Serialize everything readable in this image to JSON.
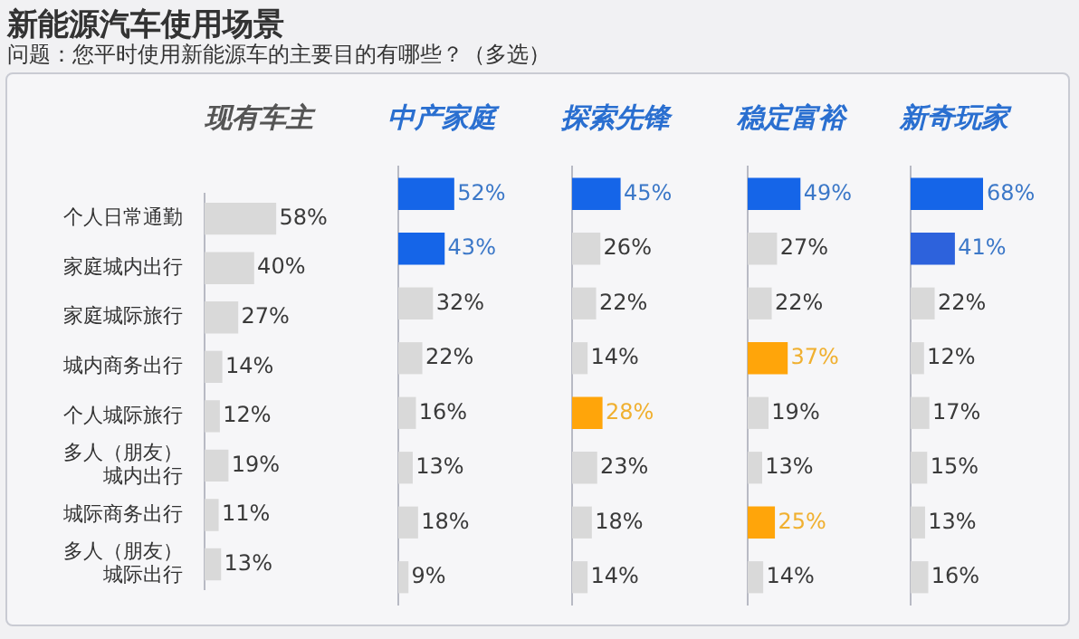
{
  "chart_data": [
    {
      "type": "bar",
      "orientation": "horizontal",
      "title": "现有车主",
      "annotations": [
        "新能源汽车使用场景",
        "问题：您平时使用新能源车的主要目的有哪些？（多选）"
      ],
      "categories": [
        "个人日常通勤",
        "家庭城内出行",
        "家庭城际旅行",
        "城内商务出行",
        "个人城际旅行",
        "多人（朋友）城内出行",
        "城际商务出行",
        "多人（朋友）城际出行"
      ],
      "values": [
        58,
        40,
        27,
        14,
        12,
        19,
        11,
        13
      ],
      "value_labels": [
        "58%",
        "40%",
        "27%",
        "14%",
        "12%",
        "19%",
        "11%",
        "13%"
      ],
      "colors": [
        "#d9d9d9",
        "#d9d9d9",
        "#d9d9d9",
        "#d9d9d9",
        "#d9d9d9",
        "#d9d9d9",
        "#d9d9d9",
        "#d9d9d9"
      ],
      "tick_labels": "y",
      "grid": false,
      "legend": false
    },
    {
      "type": "bar",
      "orientation": "horizontal",
      "title": "中产家庭",
      "categories": [
        "个人日常通勤",
        "家庭城内出行",
        "家庭城际旅行",
        "城内商务出行",
        "个人城际旅行",
        "多人（朋友）城内出行",
        "城际商务出行",
        "多人（朋友）城际出行"
      ],
      "values": [
        52,
        43,
        32,
        22,
        16,
        13,
        18,
        9
      ],
      "value_labels": [
        "52%",
        "43%",
        "32%",
        "22%",
        "16%",
        "13%",
        "18%",
        "9%"
      ],
      "colors": [
        "#1565e8",
        "#1565e8",
        "#d9d9d9",
        "#d9d9d9",
        "#d9d9d9",
        "#d9d9d9",
        "#d9d9d9",
        "#d9d9d9"
      ],
      "tick_labels": false,
      "grid": false,
      "legend": false
    },
    {
      "type": "bar",
      "orientation": "horizontal",
      "title": "探索先锋",
      "categories": [
        "个人日常通勤",
        "家庭城内出行",
        "家庭城际旅行",
        "城内商务出行",
        "个人城际旅行",
        "多人（朋友）城内出行",
        "城际商务出行",
        "多人（朋友）城际出行"
      ],
      "values": [
        45,
        26,
        22,
        14,
        28,
        23,
        18,
        14
      ],
      "value_labels": [
        "45%",
        "26%",
        "22%",
        "14%",
        "28%",
        "23%",
        "18%",
        "14%"
      ],
      "colors": [
        "#1565e8",
        "#d9d9d9",
        "#d9d9d9",
        "#d9d9d9",
        "#ffa50a",
        "#d9d9d9",
        "#d9d9d9",
        "#d9d9d9"
      ],
      "tick_labels": false,
      "grid": false,
      "legend": false
    },
    {
      "type": "bar",
      "orientation": "horizontal",
      "title": "稳定富裕",
      "categories": [
        "个人日常通勤",
        "家庭城内出行",
        "家庭城际旅行",
        "城内商务出行",
        "个人城际旅行",
        "多人（朋友）城内出行",
        "城际商务出行",
        "多人（朋友）城际出行"
      ],
      "values": [
        49,
        27,
        22,
        37,
        19,
        13,
        25,
        14
      ],
      "value_labels": [
        "49%",
        "27%",
        "22%",
        "37%",
        "19%",
        "13%",
        "25%",
        "14%"
      ],
      "colors": [
        "#1565e8",
        "#d9d9d9",
        "#d9d9d9",
        "#ffa50a",
        "#d9d9d9",
        "#d9d9d9",
        "#ffa50a",
        "#d9d9d9"
      ],
      "tick_labels": false,
      "grid": false,
      "legend": false
    },
    {
      "type": "bar",
      "orientation": "horizontal",
      "title": "新奇玩家",
      "categories": [
        "个人日常通勤",
        "家庭城内出行",
        "家庭城际旅行",
        "城内商务出行",
        "个人城际旅行",
        "多人（朋友）城内出行",
        "城际商务出行",
        "多人（朋友）城际出行"
      ],
      "values": [
        68,
        41,
        22,
        12,
        17,
        15,
        13,
        16
      ],
      "value_labels": [
        "68%",
        "41%",
        "22%",
        "12%",
        "17%",
        "15%",
        "13%",
        "16%"
      ],
      "colors": [
        "#1565e8",
        "#2d62dc",
        "#d9d9d9",
        "#d9d9d9",
        "#d9d9d9",
        "#d9d9d9",
        "#d9d9d9",
        "#d9d9d9"
      ],
      "tick_labels": false,
      "grid": false,
      "legend": false
    }
  ]
}
